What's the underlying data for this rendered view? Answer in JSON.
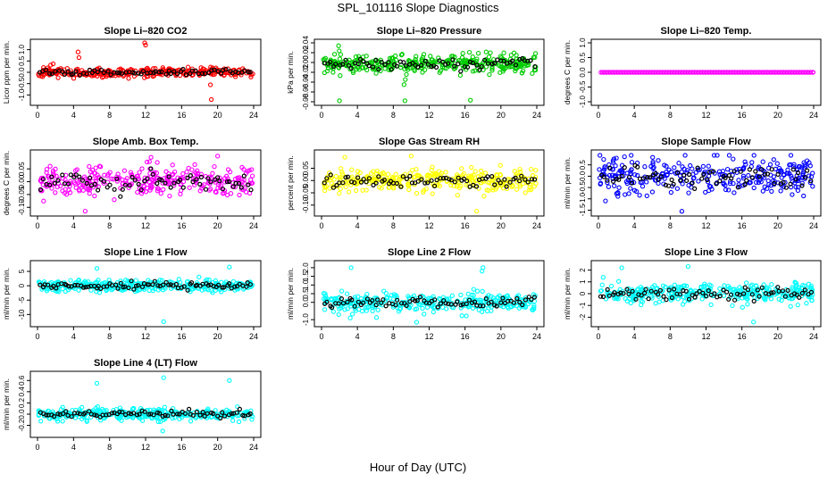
{
  "title": "SPL_101116  Slope Diagnostics",
  "xlabel": "Hour of Day (UTC)",
  "chart_data": {
    "type": "scatter",
    "x_ticks": [
      "0",
      "4",
      "8",
      "12",
      "16",
      "20",
      "24"
    ],
    "xlim": [
      0,
      24
    ],
    "panels": [
      {
        "title": "Slope Li–820 CO2",
        "ylabel": "Licor ppm per min.",
        "ylim": [
          -1.3,
          1.3
        ],
        "yticks": [
          "-1.0",
          "-0.5",
          "0.0",
          "0.5",
          "1.0"
        ],
        "ytick_values": [
          -1.0,
          -0.5,
          0.0,
          0.5,
          1.0
        ],
        "point_color": "#ff0000",
        "spread": 0.14,
        "outlier_values": [
          1.2,
          -1.2,
          0.65,
          1.3,
          -0.55,
          0.9
        ],
        "seed": 11,
        "n_points": 320,
        "n_black": 70
      },
      {
        "title": "Slope Li–820 Pressure",
        "ylabel": "kPa per min.",
        "ylim": [
          -0.08,
          0.04
        ],
        "yticks": [
          "-0.08",
          "-0.06",
          "-0.04",
          "-0.02",
          "0.00",
          "0.02",
          "0.04"
        ],
        "ytick_values": [
          -0.08,
          -0.06,
          -0.04,
          -0.02,
          0.0,
          0.02,
          0.04
        ],
        "point_color": "#00cc00",
        "spread": 0.012,
        "center": -0.002,
        "outlier_values": [
          -0.078,
          -0.078,
          -0.077,
          0.034,
          -0.045
        ],
        "seed": 23,
        "n_points": 340,
        "n_black": 70
      },
      {
        "title": "Slope Li–820 Temp.",
        "ylabel": "degrees C per min.",
        "ylim": [
          -1.0,
          1.0
        ],
        "yticks": [
          "-1.0",
          "-0.5",
          "0.0",
          "0.5",
          "1.0"
        ],
        "ytick_values": [
          -1.0,
          -0.5,
          0.0,
          0.5,
          1.0
        ],
        "point_color": "#ff00ff",
        "spread": 0.0,
        "outlier_values": [],
        "seed": 31,
        "n_points": 80,
        "n_black": 80,
        "line_mode": true
      },
      {
        "title": "Slope Amb. Box Temp.",
        "ylabel": "degrees C per min.",
        "ylim": [
          -0.12,
          0.11
        ],
        "yticks": [
          "-0.10",
          "-0.05",
          "0.00",
          "0.05"
        ],
        "ytick_values": [
          -0.1,
          -0.05,
          0.0,
          0.05
        ],
        "point_color": "#ff00ff",
        "spread": 0.04,
        "outlier_values": [
          0.1,
          -0.115,
          0.095
        ],
        "seed": 41,
        "n_points": 300,
        "n_black": 70
      },
      {
        "title": "Slope Gas Stream RH",
        "ylabel": "percent per min.",
        "ylim": [
          -0.13,
          0.11
        ],
        "yticks": [
          "-0.10",
          "-0.05",
          "0.00",
          "0.05"
        ],
        "ytick_values": [
          -0.1,
          -0.05,
          0.0,
          0.05
        ],
        "point_color": "#ffff00",
        "spread": 0.03,
        "outlier_values": [
          0.1,
          -0.125,
          0.095
        ],
        "seed": 53,
        "n_points": 320,
        "n_black": 70
      },
      {
        "title": "Slope Sample Flow",
        "ylabel": "ml/min per min.",
        "ylim": [
          -1.6,
          1.0
        ],
        "yticks": [
          "-1.5",
          "-1.0",
          "-0.5",
          "0.0",
          "0.5"
        ],
        "ytick_values": [
          -1.5,
          -1.0,
          -0.5,
          0.0,
          0.5
        ],
        "point_color": "#0000ff",
        "spread": 0.5,
        "outlier_values": [
          0.8,
          -1.55
        ],
        "seed": 67,
        "n_points": 300,
        "n_black": 70
      },
      {
        "title": "Slope Line 1 Flow",
        "ylabel": "ml/min per min.",
        "ylim": [
          -13,
          7.5
        ],
        "yticks": [
          "-10",
          "-5",
          "0",
          "5"
        ],
        "ytick_values": [
          -10,
          -5,
          0,
          5
        ],
        "point_color": "#00ffff",
        "spread": 1.3,
        "outlier_values": [
          -12.5,
          6.5,
          6.0
        ],
        "seed": 79,
        "n_points": 320,
        "n_black": 80
      },
      {
        "title": "Slope Line 2 Flow",
        "ylabel": "ml/min per min.",
        "ylim": [
          -1.2,
          2.2
        ],
        "yticks": [
          "-1.0",
          "0.0",
          "0.5",
          "1.0",
          "1.5",
          "2.0"
        ],
        "ytick_values": [
          -1.0,
          0.0,
          0.5,
          1.0,
          1.5,
          2.0
        ],
        "point_color": "#00ffff",
        "spread": 0.35,
        "outlier_values": [
          2.0,
          2.0,
          -1.15,
          1.8,
          -0.9
        ],
        "seed": 83,
        "n_points": 320,
        "n_black": 75
      },
      {
        "title": "Slope Line 3 Flow",
        "ylabel": "ml/min per min.",
        "ylim": [
          -2.5,
          2.5
        ],
        "yticks": [
          "-2",
          "-1",
          "0",
          "1",
          "2"
        ],
        "ytick_values": [
          -2,
          -1,
          0,
          1,
          2
        ],
        "point_color": "#00ffff",
        "spread": 0.6,
        "outlier_values": [
          2.3,
          -2.4,
          2.2
        ],
        "seed": 97,
        "n_points": 320,
        "n_black": 75
      },
      {
        "title": "Slope Line 4 (LT) Flow",
        "ylabel": "ml/min per min.",
        "ylim": [
          -0.35,
          0.7
        ],
        "yticks": [
          "-0.2",
          "0.0",
          "0.2",
          "0.4",
          "0.6"
        ],
        "ytick_values": [
          -0.2,
          0.0,
          0.2,
          0.4,
          0.6
        ],
        "point_color": "#00ffff",
        "spread": 0.07,
        "outlier_values": [
          0.65,
          0.6,
          0.55,
          -0.3
        ],
        "seed": 101,
        "n_points": 320,
        "n_black": 75
      }
    ]
  }
}
